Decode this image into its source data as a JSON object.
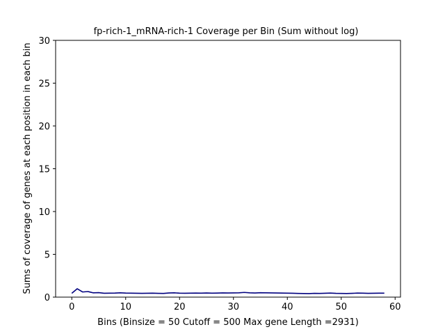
{
  "chart_data": {
    "type": "line",
    "title": "fp-rich-1_mRNA-rich-1 Coverage per Bin (Sum without log)",
    "xlabel": "Bins  (Binsize = 50 Cutoff = 500 Max gene Length =2931)",
    "ylabel": "Sums of coverage of genes at each position in each bin",
    "xlim": [
      -3,
      61
    ],
    "ylim": [
      0,
      30
    ],
    "xticks": [
      0,
      10,
      20,
      30,
      40,
      50,
      60
    ],
    "yticks": [
      0,
      5,
      10,
      15,
      20,
      25,
      30
    ],
    "grid": false,
    "series": [
      {
        "color": "#00007f",
        "x": [
          0,
          1,
          2,
          3,
          4,
          5,
          6,
          7,
          8,
          9,
          10,
          11,
          12,
          13,
          14,
          15,
          16,
          17,
          18,
          19,
          20,
          21,
          22,
          23,
          24,
          25,
          26,
          27,
          28,
          29,
          30,
          31,
          32,
          33,
          34,
          35,
          36,
          37,
          38,
          39,
          40,
          41,
          42,
          43,
          44,
          45,
          46,
          47,
          48,
          49,
          50,
          51,
          52,
          53,
          54,
          55,
          56,
          57,
          58
        ],
        "y": [
          0.45,
          0.98,
          0.6,
          0.65,
          0.5,
          0.52,
          0.45,
          0.46,
          0.47,
          0.5,
          0.47,
          0.46,
          0.45,
          0.44,
          0.45,
          0.46,
          0.44,
          0.43,
          0.48,
          0.5,
          0.46,
          0.45,
          0.46,
          0.47,
          0.46,
          0.48,
          0.46,
          0.47,
          0.49,
          0.48,
          0.49,
          0.5,
          0.55,
          0.5,
          0.48,
          0.51,
          0.5,
          0.49,
          0.48,
          0.47,
          0.46,
          0.45,
          0.43,
          0.42,
          0.41,
          0.44,
          0.43,
          0.45,
          0.47,
          0.44,
          0.43,
          0.42,
          0.44,
          0.47,
          0.46,
          0.44,
          0.45,
          0.46,
          0.46
        ]
      }
    ]
  }
}
